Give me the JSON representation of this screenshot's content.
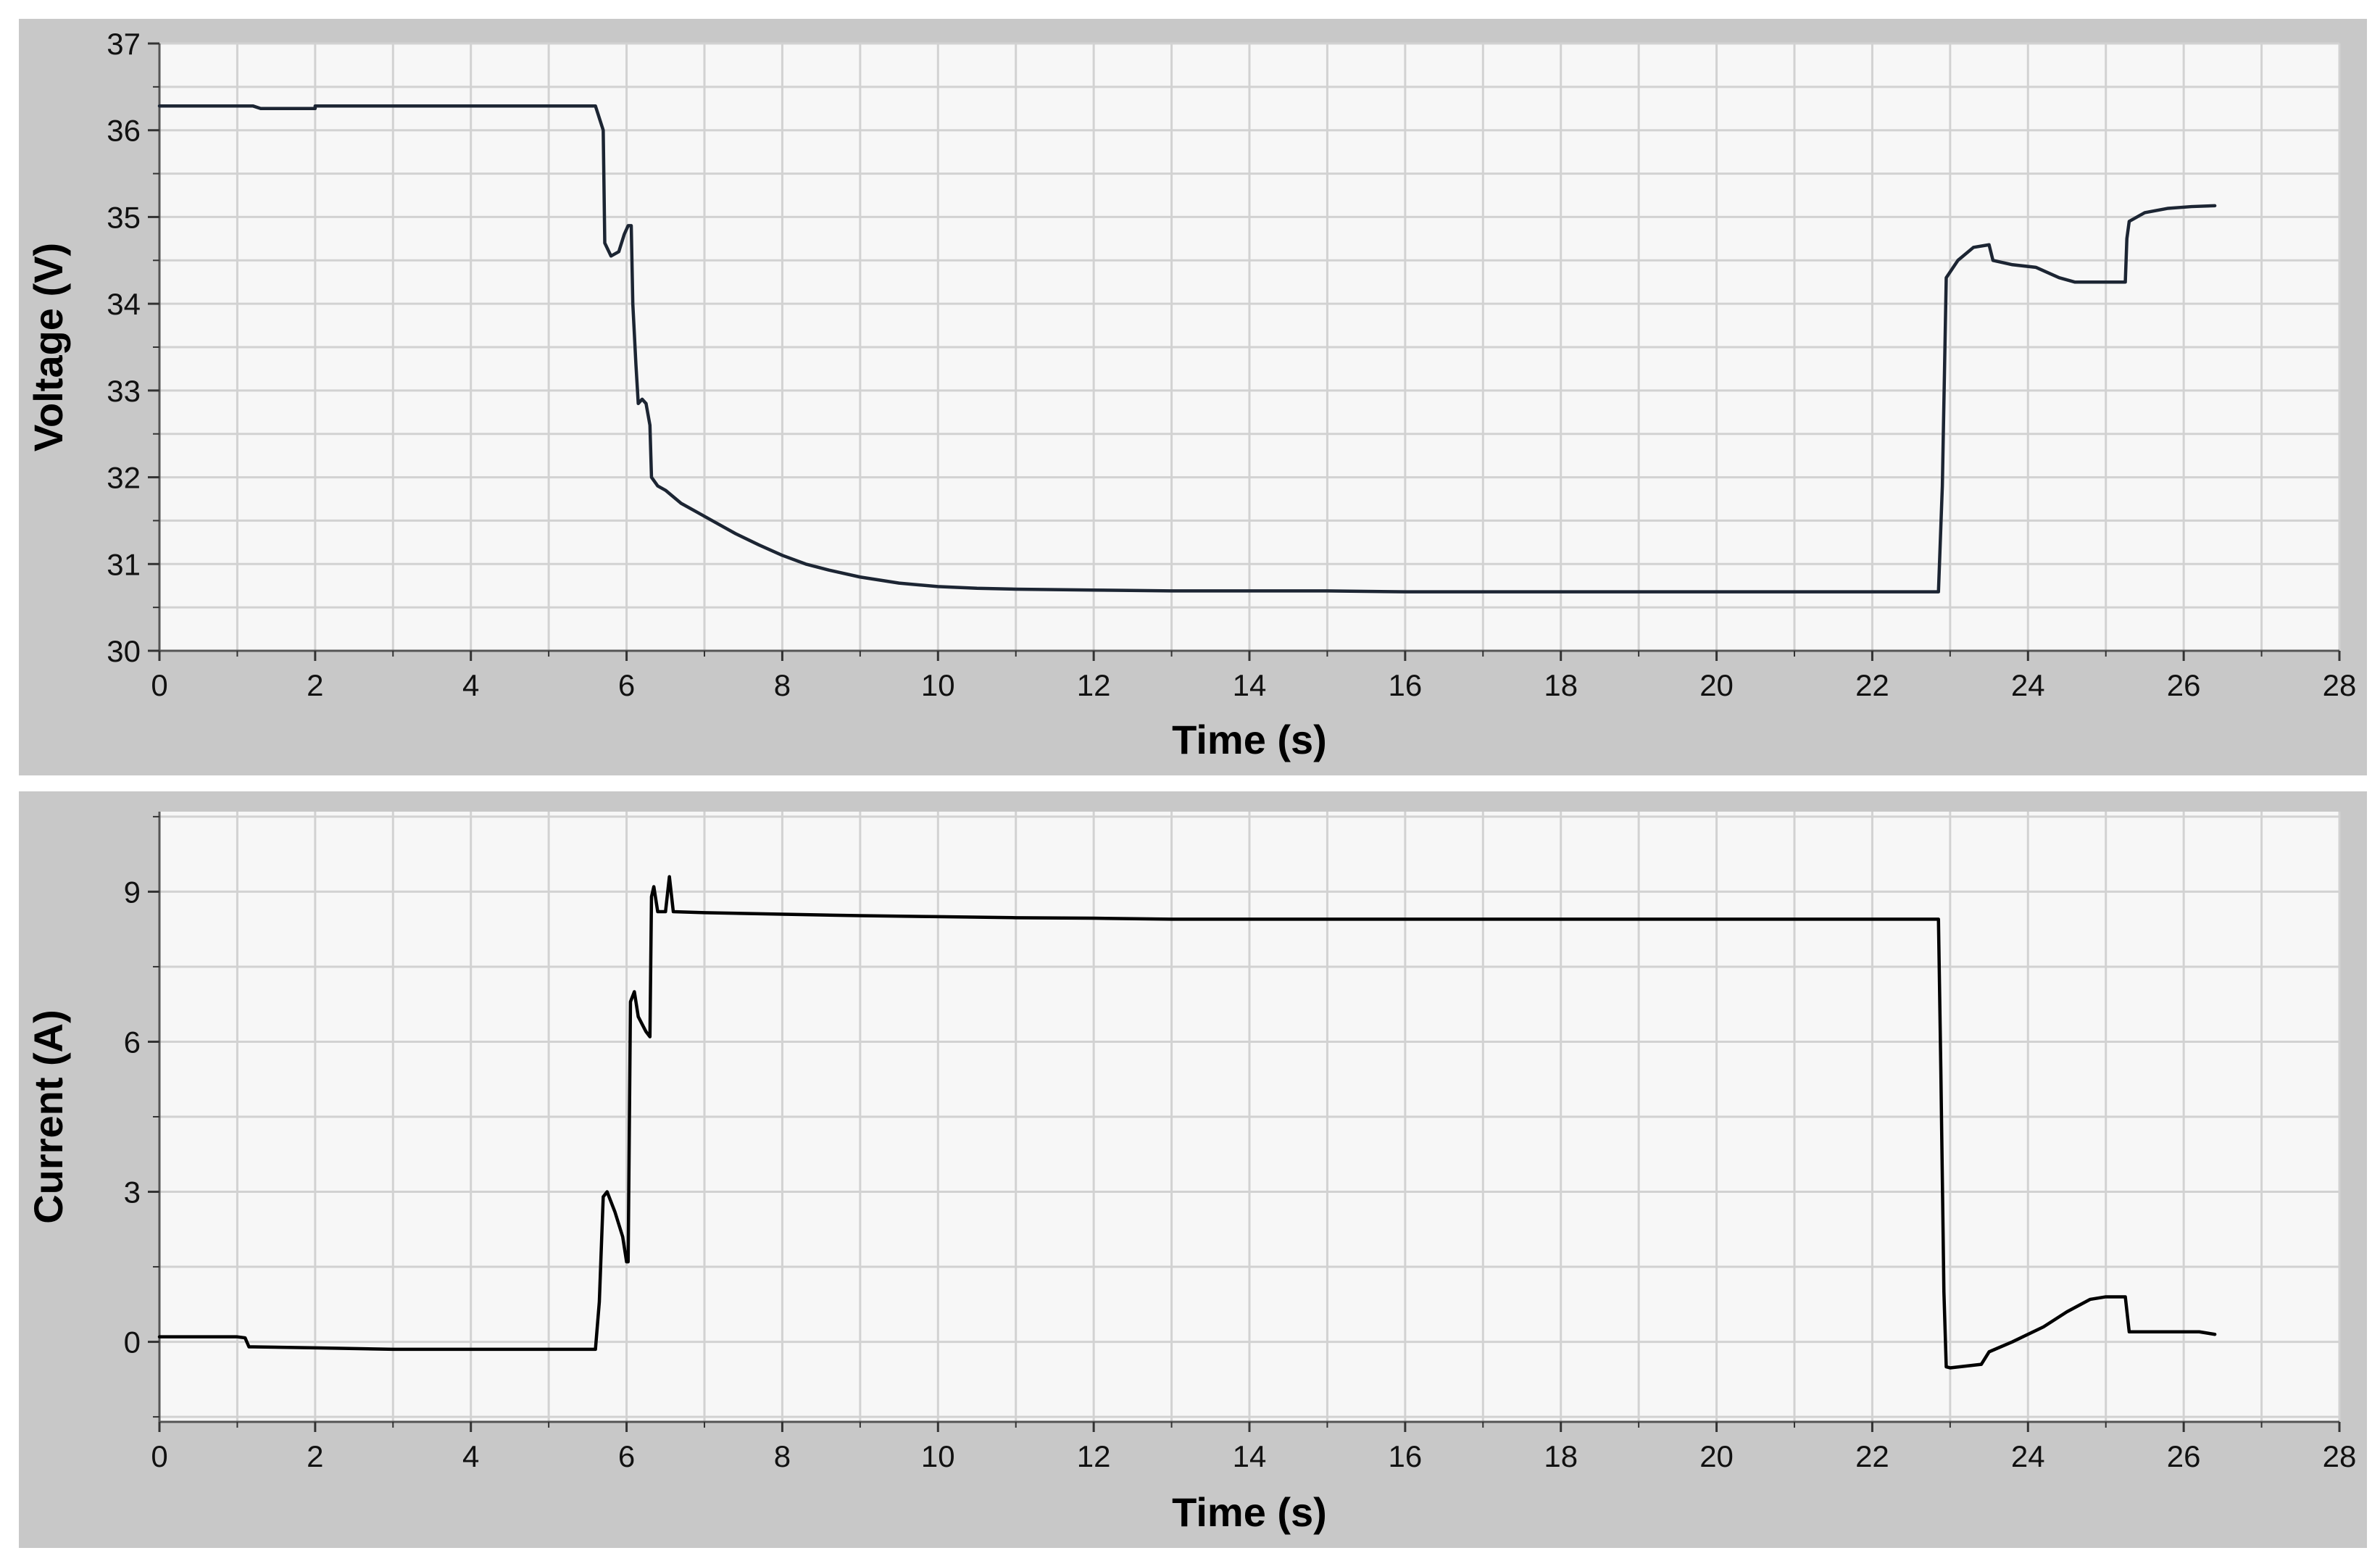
{
  "chart_data": [
    {
      "type": "line",
      "xlabel": "Time (s)",
      "ylabel": "Voltage (V)",
      "xlim": [
        0,
        28
      ],
      "ylim": [
        30,
        37
      ],
      "xticks": [
        0,
        2,
        4,
        6,
        8,
        10,
        12,
        14,
        16,
        18,
        20,
        22,
        24,
        26,
        28
      ],
      "yticks": [
        30,
        31,
        32,
        33,
        34,
        35,
        36,
        37
      ],
      "x_minor_step": 1,
      "y_minor_step": 0.5,
      "grid": true,
      "series": [
        {
          "points": [
            [
              0,
              36.28
            ],
            [
              1.2,
              36.28
            ],
            [
              1.3,
              36.25
            ],
            [
              2.0,
              36.25
            ],
            [
              2.0,
              36.28
            ],
            [
              5.6,
              36.28
            ],
            [
              5.7,
              36.0
            ],
            [
              5.72,
              34.7
            ],
            [
              5.8,
              34.55
            ],
            [
              5.9,
              34.6
            ],
            [
              5.97,
              34.8
            ],
            [
              6.02,
              34.9
            ],
            [
              6.06,
              34.9
            ],
            [
              6.08,
              34.0
            ],
            [
              6.12,
              33.3
            ],
            [
              6.15,
              32.85
            ],
            [
              6.2,
              32.9
            ],
            [
              6.25,
              32.85
            ],
            [
              6.3,
              32.6
            ],
            [
              6.32,
              32.0
            ],
            [
              6.4,
              31.9
            ],
            [
              6.5,
              31.85
            ],
            [
              6.7,
              31.7
            ],
            [
              6.9,
              31.6
            ],
            [
              7.1,
              31.5
            ],
            [
              7.4,
              31.35
            ],
            [
              7.7,
              31.22
            ],
            [
              8.0,
              31.1
            ],
            [
              8.3,
              31.0
            ],
            [
              8.6,
              30.93
            ],
            [
              9.0,
              30.85
            ],
            [
              9.5,
              30.78
            ],
            [
              10.0,
              30.74
            ],
            [
              10.5,
              30.72
            ],
            [
              11.0,
              30.71
            ],
            [
              12.0,
              30.7
            ],
            [
              13.0,
              30.69
            ],
            [
              14.0,
              30.69
            ],
            [
              15.0,
              30.69
            ],
            [
              16.0,
              30.68
            ],
            [
              17.0,
              30.68
            ],
            [
              18.0,
              30.68
            ],
            [
              19.0,
              30.68
            ],
            [
              20.0,
              30.68
            ],
            [
              21.0,
              30.68
            ],
            [
              22.0,
              30.68
            ],
            [
              22.85,
              30.68
            ],
            [
              22.9,
              31.9
            ],
            [
              22.95,
              34.3
            ],
            [
              23.1,
              34.5
            ],
            [
              23.3,
              34.65
            ],
            [
              23.5,
              34.68
            ],
            [
              23.55,
              34.5
            ],
            [
              23.8,
              34.45
            ],
            [
              24.1,
              34.42
            ],
            [
              24.4,
              34.3
            ],
            [
              24.6,
              34.25
            ],
            [
              25.0,
              34.25
            ],
            [
              25.25,
              34.25
            ],
            [
              25.27,
              34.75
            ],
            [
              25.3,
              34.95
            ],
            [
              25.5,
              35.05
            ],
            [
              25.8,
              35.1
            ],
            [
              26.1,
              35.12
            ],
            [
              26.4,
              35.13
            ]
          ]
        }
      ]
    },
    {
      "type": "line",
      "xlabel": "Time (s)",
      "ylabel": "Current (A)",
      "xlim": [
        0,
        28
      ],
      "ylim": [
        -1.6,
        10.6
      ],
      "xticks": [
        0,
        2,
        4,
        6,
        8,
        10,
        12,
        14,
        16,
        18,
        20,
        22,
        24,
        26,
        28
      ],
      "yticks": [
        0,
        3,
        6,
        9
      ],
      "x_minor_step": 1,
      "y_minor_step": 1.5,
      "grid": true,
      "series": [
        {
          "points": [
            [
              0,
              0.1
            ],
            [
              0.5,
              0.1
            ],
            [
              1.0,
              0.1
            ],
            [
              1.1,
              0.08
            ],
            [
              1.15,
              -0.1
            ],
            [
              1.2,
              -0.1
            ],
            [
              2.0,
              -0.12
            ],
            [
              3.0,
              -0.15
            ],
            [
              4.0,
              -0.15
            ],
            [
              5.0,
              -0.15
            ],
            [
              5.6,
              -0.15
            ],
            [
              5.65,
              0.8
            ],
            [
              5.7,
              2.9
            ],
            [
              5.75,
              3.0
            ],
            [
              5.85,
              2.6
            ],
            [
              5.95,
              2.1
            ],
            [
              6.0,
              1.6
            ],
            [
              6.02,
              1.6
            ],
            [
              6.05,
              6.8
            ],
            [
              6.1,
              7.0
            ],
            [
              6.15,
              6.5
            ],
            [
              6.25,
              6.2
            ],
            [
              6.3,
              6.1
            ],
            [
              6.32,
              8.9
            ],
            [
              6.35,
              9.1
            ],
            [
              6.4,
              8.6
            ],
            [
              6.5,
              8.6
            ],
            [
              6.55,
              9.3
            ],
            [
              6.6,
              8.6
            ],
            [
              7.0,
              8.58
            ],
            [
              8.0,
              8.55
            ],
            [
              9.0,
              8.52
            ],
            [
              10.0,
              8.5
            ],
            [
              11.0,
              8.48
            ],
            [
              12.0,
              8.47
            ],
            [
              13.0,
              8.45
            ],
            [
              14.0,
              8.45
            ],
            [
              15.0,
              8.45
            ],
            [
              16.0,
              8.45
            ],
            [
              17.0,
              8.45
            ],
            [
              18.0,
              8.45
            ],
            [
              19.0,
              8.45
            ],
            [
              20.0,
              8.45
            ],
            [
              21.0,
              8.45
            ],
            [
              22.0,
              8.45
            ],
            [
              22.85,
              8.45
            ],
            [
              22.88,
              5.5
            ],
            [
              22.92,
              1.0
            ],
            [
              22.95,
              -0.5
            ],
            [
              23.0,
              -0.52
            ],
            [
              23.4,
              -0.45
            ],
            [
              23.5,
              -0.2
            ],
            [
              23.8,
              0.0
            ],
            [
              24.2,
              0.3
            ],
            [
              24.5,
              0.6
            ],
            [
              24.8,
              0.85
            ],
            [
              25.0,
              0.9
            ],
            [
              25.25,
              0.9
            ],
            [
              25.3,
              0.2
            ],
            [
              25.8,
              0.2
            ],
            [
              26.2,
              0.2
            ],
            [
              26.4,
              0.15
            ]
          ]
        }
      ]
    }
  ]
}
